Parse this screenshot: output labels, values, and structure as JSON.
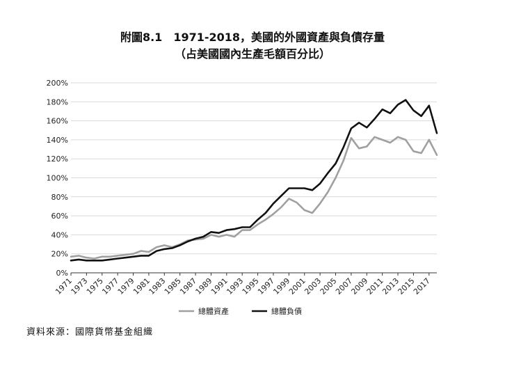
{
  "title": "附圖8.1　1971-2018，美國的外國資產與負債存量",
  "subtitle": "（占美國國內生產毛額百分比）",
  "source": "資料來源：國際貨幣基金組織",
  "colors": {
    "assets": "#a0a0a0",
    "liabilities": "#111111",
    "grid": "#d9d9d9"
  },
  "chart_data": {
    "type": "line",
    "title": "附圖8.1　1971-2018，美國的外國資產與負債存量",
    "subtitle": "（占美國國內生產毛額百分比）",
    "xlabel": "",
    "ylabel": "",
    "ylim": [
      0,
      200
    ],
    "yticks": [
      "0%",
      "20%",
      "40%",
      "60%",
      "80%",
      "100%",
      "120%",
      "140%",
      "160%",
      "180%",
      "200%"
    ],
    "xticks": [
      "1971",
      "1973",
      "1975",
      "1977",
      "1979",
      "1981",
      "1983",
      "1985",
      "1987",
      "1989",
      "1991",
      "1993",
      "1995",
      "1997",
      "1999",
      "2001",
      "2003",
      "2005",
      "2007",
      "2009",
      "2011",
      "2013",
      "2015",
      "2017"
    ],
    "x": [
      1971,
      1972,
      1973,
      1974,
      1975,
      1976,
      1977,
      1978,
      1979,
      1980,
      1981,
      1982,
      1983,
      1984,
      1985,
      1986,
      1987,
      1988,
      1989,
      1990,
      1991,
      1992,
      1993,
      1994,
      1995,
      1996,
      1997,
      1998,
      1999,
      2000,
      2001,
      2002,
      2003,
      2004,
      2005,
      2006,
      2007,
      2008,
      2009,
      2010,
      2011,
      2012,
      2013,
      2014,
      2015,
      2016,
      2017,
      2018
    ],
    "grid": true,
    "legend_position": "bottom",
    "series": [
      {
        "name": "總體資產",
        "color": "#a0a0a0",
        "values": [
          17,
          18,
          16,
          15,
          17,
          17,
          18,
          19,
          20,
          23,
          22,
          27,
          29,
          27,
          30,
          34,
          35,
          36,
          40,
          38,
          40,
          38,
          45,
          45,
          51,
          56,
          62,
          69,
          78,
          74,
          66,
          63,
          73,
          85,
          100,
          118,
          142,
          131,
          133,
          143,
          140,
          137,
          143,
          140,
          128,
          126,
          140,
          124
        ]
      },
      {
        "name": "總體負債",
        "color": "#111111",
        "values": [
          13,
          14,
          13,
          13,
          13,
          14,
          15,
          16,
          17,
          18,
          18,
          23,
          25,
          26,
          29,
          33,
          36,
          38,
          43,
          42,
          45,
          46,
          48,
          48,
          56,
          63,
          73,
          81,
          89,
          89,
          89,
          87,
          94,
          105,
          115,
          132,
          152,
          158,
          153,
          162,
          172,
          168,
          177,
          182,
          171,
          165,
          176,
          147
        ]
      }
    ]
  }
}
